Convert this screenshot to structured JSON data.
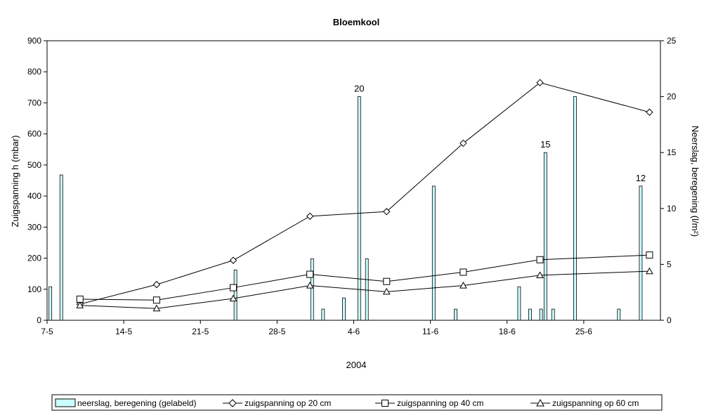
{
  "chart_data": {
    "type": "bar+line",
    "title": "Bloemkool",
    "xlabel": "2004",
    "ylabel_left": "Zuigspanning h (mbar)",
    "ylabel_right": "Neerslag, beregening (l/m²)",
    "ylim_left": [
      0,
      900
    ],
    "ylim_right": [
      0,
      25
    ],
    "yticks_left": [
      "0",
      "100",
      "200",
      "300",
      "400",
      "500",
      "600",
      "700",
      "800",
      "900"
    ],
    "yticks_right": [
      "0",
      "5",
      "10",
      "15",
      "20",
      "25"
    ],
    "x_range_days": [
      0,
      56
    ],
    "xticks": [
      {
        "label": "7-5",
        "day": 0
      },
      {
        "label": "14-5",
        "day": 7
      },
      {
        "label": "21-5",
        "day": 14
      },
      {
        "label": "28-5",
        "day": 21
      },
      {
        "label": "4-6",
        "day": 28
      },
      {
        "label": "11-6",
        "day": 35
      },
      {
        "label": "18-6",
        "day": 42
      },
      {
        "label": "25-6",
        "day": 49
      }
    ],
    "grid": false,
    "legend_position": "bottom",
    "bars": {
      "name": "neerslag, beregening (gelabeld)",
      "axis": "right",
      "color": "#ccffff",
      "points": [
        {
          "day": 0.3,
          "value": 3
        },
        {
          "day": 1.3,
          "value": 13
        },
        {
          "day": 17.2,
          "value": 4.5
        },
        {
          "day": 24.2,
          "value": 5.5
        },
        {
          "day": 25.2,
          "value": 1
        },
        {
          "day": 27.1,
          "value": 2
        },
        {
          "day": 28.5,
          "value": 20,
          "label": "20"
        },
        {
          "day": 29.2,
          "value": 5.5
        },
        {
          "day": 35.3,
          "value": 12
        },
        {
          "day": 37.3,
          "value": 1
        },
        {
          "day": 43.1,
          "value": 3
        },
        {
          "day": 44.1,
          "value": 1
        },
        {
          "day": 45.1,
          "value": 1
        },
        {
          "day": 45.5,
          "value": 15,
          "label": "15"
        },
        {
          "day": 46.2,
          "value": 1
        },
        {
          "day": 48.2,
          "value": 20
        },
        {
          "day": 52.2,
          "value": 1
        },
        {
          "day": 54.2,
          "value": 12,
          "label": "12"
        }
      ]
    },
    "series": [
      {
        "name": "zuigspanning op 20 cm",
        "marker": "diamond",
        "axis": "left",
        "x_days": [
          3,
          10,
          17,
          24,
          31,
          38,
          45,
          55
        ],
        "values": [
          52,
          115,
          193,
          335,
          350,
          570,
          765,
          670
        ]
      },
      {
        "name": "zuigspanning op 40 cm",
        "marker": "square",
        "axis": "left",
        "x_days": [
          3,
          10,
          17,
          24,
          31,
          38,
          45,
          55
        ],
        "values": [
          68,
          65,
          105,
          148,
          125,
          155,
          195,
          210
        ]
      },
      {
        "name": "zuigspanning op 60 cm",
        "marker": "triangle",
        "axis": "left",
        "x_days": [
          3,
          10,
          17,
          24,
          31,
          38,
          45,
          55
        ],
        "values": [
          48,
          38,
          70,
          112,
          92,
          112,
          145,
          158
        ]
      }
    ]
  }
}
